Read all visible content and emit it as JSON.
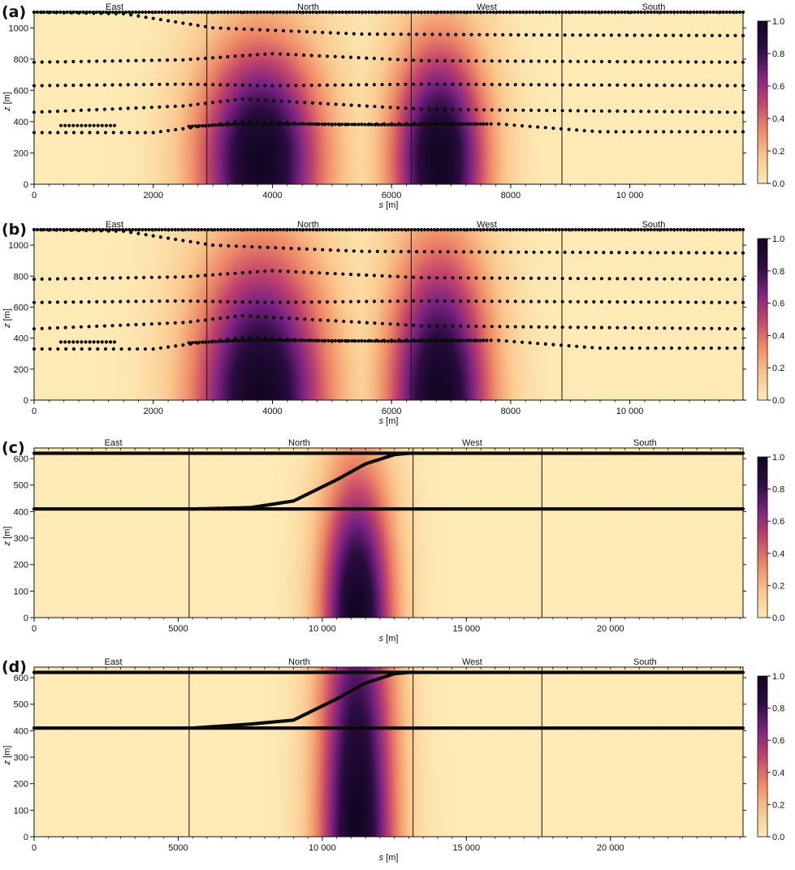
{
  "colors": {
    "frame": "#111111",
    "marker": "#0b0b0b",
    "colormap": [
      "#fdeab4",
      "#f9c58b",
      "#ee8866",
      "#c2446a",
      "#7b2283",
      "#2b0c40",
      "#120622"
    ]
  },
  "chart_data": [
    {
      "type": "heatmap",
      "panel_label": "(a)",
      "xlabel": "s [m]",
      "ylabel": "z [m]",
      "xlim": [
        0,
        11900
      ],
      "ylim": [
        0,
        1100
      ],
      "xticks": [
        0,
        2000,
        4000,
        6000,
        8000,
        10000
      ],
      "xtick_labels": [
        "0",
        "2000",
        "4000",
        "6000",
        "8000",
        "10 000"
      ],
      "yticks": [
        0,
        200,
        400,
        600,
        800,
        1000
      ],
      "ytick_labels": [
        "0",
        "200",
        "400",
        "600",
        "800",
        "1000"
      ],
      "section_labels": [
        {
          "label": "East",
          "s": 1350
        },
        {
          "label": "North",
          "s": 4600
        },
        {
          "label": "West",
          "s": 7600
        },
        {
          "label": "South",
          "s": 10400
        }
      ],
      "section_boundaries": [
        2900,
        6330,
        8860
      ],
      "field_peaks": [
        {
          "s": 3800,
          "z": 150,
          "sigma_s": 750,
          "sigma_z": 550,
          "amplitude": 1.0
        },
        {
          "s": 6800,
          "z": 150,
          "sigma_s": 580,
          "sigma_z": 550,
          "amplitude": 1.0
        }
      ],
      "colorbar": {
        "range": [
          0,
          1
        ],
        "ticks": [
          0.0,
          0.2,
          0.4,
          0.6,
          0.8,
          1.0
        ],
        "tick_labels": [
          "0.0",
          "0.2",
          "0.4",
          "0.6",
          "0.8",
          "1.0"
        ]
      },
      "tracks": [
        {
          "s": [
            0,
            11900
          ],
          "z": [
            1100,
            1100
          ],
          "spacing": 55
        },
        {
          "s": [
            0,
            1500,
            3000,
            5500,
            8000,
            11900
          ],
          "z": [
            1100,
            1090,
            1000,
            960,
            955,
            950
          ],
          "spacing": 130
        },
        {
          "s": [
            0,
            2500,
            4000,
            6500,
            9000,
            11900
          ],
          "z": [
            780,
            795,
            835,
            790,
            785,
            780
          ],
          "spacing": 130
        },
        {
          "s": [
            0,
            2500,
            4000,
            6500,
            9000,
            11900
          ],
          "z": [
            630,
            640,
            630,
            640,
            635,
            630
          ],
          "spacing": 130
        },
        {
          "s": [
            0,
            2500,
            3500,
            6500,
            9000,
            11900
          ],
          "z": [
            460,
            500,
            545,
            480,
            470,
            460
          ],
          "spacing": 130
        },
        {
          "s": [
            0,
            2000,
            3500,
            5000,
            6500,
            7800
          ],
          "z": [
            330,
            330,
            405,
            380,
            390,
            385
          ],
          "spacing": 130
        },
        {
          "s": [
            7800,
            9500,
            11900
          ],
          "z": [
            385,
            335,
            335
          ],
          "spacing": 130
        },
        {
          "s": [
            2600,
            3500,
            4500,
            6000,
            7600
          ],
          "z": [
            370,
            385,
            385,
            380,
            385
          ],
          "spacing": 55
        },
        {
          "s": [
            450,
            1350
          ],
          "z": [
            375,
            375
          ],
          "spacing": 70
        }
      ]
    },
    {
      "type": "heatmap",
      "panel_label": "(b)",
      "xlabel": "s [m]",
      "ylabel": "z [m]",
      "xlim": [
        0,
        11900
      ],
      "ylim": [
        0,
        1100
      ],
      "xticks": [
        0,
        2000,
        4000,
        6000,
        8000,
        10000
      ],
      "xtick_labels": [
        "0",
        "2000",
        "4000",
        "6000",
        "8000",
        "10 000"
      ],
      "yticks": [
        0,
        200,
        400,
        600,
        800,
        1000
      ],
      "ytick_labels": [
        "0",
        "200",
        "400",
        "600",
        "800",
        "1000"
      ],
      "section_labels": [
        {
          "label": "East",
          "s": 1350
        },
        {
          "label": "North",
          "s": 4600
        },
        {
          "label": "West",
          "s": 7600
        },
        {
          "label": "South",
          "s": 10400
        }
      ],
      "section_boundaries": [
        2900,
        6330,
        8860
      ],
      "field_peaks": [
        {
          "s": 3800,
          "z": 0,
          "sigma_s": 800,
          "sigma_z": 700,
          "amplitude": 1.0
        },
        {
          "s": 6800,
          "z": 0,
          "sigma_s": 620,
          "sigma_z": 700,
          "amplitude": 1.0
        }
      ],
      "colorbar": {
        "range": [
          0,
          1
        ],
        "ticks": [
          0.0,
          0.2,
          0.4,
          0.6,
          0.8,
          1.0
        ],
        "tick_labels": [
          "0.0",
          "0.2",
          "0.4",
          "0.6",
          "0.8",
          "1.0"
        ]
      },
      "tracks": [
        {
          "s": [
            0,
            11900
          ],
          "z": [
            1100,
            1100
          ],
          "spacing": 55
        },
        {
          "s": [
            0,
            1500,
            3000,
            5500,
            8000,
            11900
          ],
          "z": [
            1100,
            1090,
            1000,
            960,
            955,
            950
          ],
          "spacing": 130
        },
        {
          "s": [
            0,
            2500,
            4000,
            6500,
            9000,
            11900
          ],
          "z": [
            780,
            795,
            835,
            790,
            785,
            780
          ],
          "spacing": 130
        },
        {
          "s": [
            0,
            2500,
            4000,
            6500,
            9000,
            11900
          ],
          "z": [
            630,
            640,
            630,
            640,
            635,
            630
          ],
          "spacing": 130
        },
        {
          "s": [
            0,
            2500,
            3500,
            6500,
            9000,
            11900
          ],
          "z": [
            460,
            500,
            545,
            480,
            470,
            460
          ],
          "spacing": 130
        },
        {
          "s": [
            0,
            2000,
            3500,
            5000,
            6500,
            7800
          ],
          "z": [
            330,
            330,
            405,
            380,
            390,
            385
          ],
          "spacing": 130
        },
        {
          "s": [
            7800,
            9500,
            11900
          ],
          "z": [
            385,
            335,
            335
          ],
          "spacing": 130
        },
        {
          "s": [
            2600,
            3500,
            4500,
            6000,
            7600
          ],
          "z": [
            370,
            385,
            385,
            380,
            385
          ],
          "spacing": 55
        },
        {
          "s": [
            450,
            1350
          ],
          "z": [
            375,
            375
          ],
          "spacing": 70
        }
      ]
    },
    {
      "type": "heatmap",
      "panel_label": "(c)",
      "xlabel": "s [m]",
      "ylabel": "z [m]",
      "xlim": [
        0,
        24600
      ],
      "ylim": [
        0,
        640
      ],
      "xticks": [
        0,
        5000,
        10000,
        15000,
        20000
      ],
      "xtick_labels": [
        "0",
        "5000",
        "10 000",
        "15 000",
        "20 000"
      ],
      "yticks": [
        0,
        100,
        200,
        300,
        400,
        500,
        600
      ],
      "ytick_labels": [
        "0",
        "100",
        "200",
        "300",
        "400",
        "500",
        "600"
      ],
      "section_labels": [
        {
          "label": "East",
          "s": 2750
        },
        {
          "label": "North",
          "s": 9200
        },
        {
          "label": "West",
          "s": 15200
        },
        {
          "label": "South",
          "s": 21200
        }
      ],
      "section_boundaries": [
        5380,
        13150,
        17620
      ],
      "field_peaks": [
        {
          "s": 11200,
          "z": 0,
          "sigma_s": 900,
          "sigma_z": 400,
          "amplitude": 1.0
        }
      ],
      "colorbar": {
        "range": [
          0,
          1
        ],
        "ticks": [
          0.0,
          0.2,
          0.4,
          0.6,
          0.8,
          1.0
        ],
        "tick_labels": [
          "0.0",
          "0.2",
          "0.4",
          "0.6",
          "0.8",
          "1.0"
        ]
      },
      "tracks": [
        {
          "s": [
            0,
            24600
          ],
          "z": [
            620,
            620
          ],
          "spacing": 40
        },
        {
          "s": [
            0,
            24600
          ],
          "z": [
            410,
            410
          ],
          "spacing": 40
        },
        {
          "s": [
            5500,
            7500,
            9000,
            10500,
            11500,
            12500,
            13000
          ],
          "z": [
            410,
            415,
            440,
            520,
            580,
            615,
            620
          ],
          "spacing": 40
        }
      ]
    },
    {
      "type": "heatmap",
      "panel_label": "(d)",
      "xlabel": "s [m]",
      "ylabel": "z [m]",
      "xlim": [
        0,
        24600
      ],
      "ylim": [
        0,
        640
      ],
      "xticks": [
        0,
        5000,
        10000,
        15000,
        20000
      ],
      "xtick_labels": [
        "0",
        "5000",
        "10 000",
        "15 000",
        "20 000"
      ],
      "yticks": [
        0,
        100,
        200,
        300,
        400,
        500,
        600
      ],
      "ytick_labels": [
        "0",
        "100",
        "200",
        "300",
        "400",
        "500",
        "600"
      ],
      "section_labels": [
        {
          "label": "East",
          "s": 2750
        },
        {
          "label": "North",
          "s": 9200
        },
        {
          "label": "West",
          "s": 15200
        },
        {
          "label": "South",
          "s": 21200
        }
      ],
      "section_boundaries": [
        5380,
        13150,
        17620
      ],
      "field_peaks": [
        {
          "s": 11200,
          "z": 0,
          "sigma_s": 950,
          "sigma_z": 800,
          "amplitude": 1.0
        }
      ],
      "colorbar": {
        "range": [
          0,
          1
        ],
        "ticks": [
          0.0,
          0.2,
          0.4,
          0.6,
          0.8,
          1.0
        ],
        "tick_labels": [
          "0.0",
          "0.2",
          "0.4",
          "0.6",
          "0.8",
          "1.0"
        ]
      },
      "tracks": [
        {
          "s": [
            0,
            24600
          ],
          "z": [
            620,
            620
          ],
          "spacing": 40
        },
        {
          "s": [
            0,
            24600
          ],
          "z": [
            410,
            410
          ],
          "spacing": 40
        },
        {
          "s": [
            5500,
            7500,
            9000,
            10500,
            11500,
            12500,
            13000
          ],
          "z": [
            410,
            425,
            440,
            520,
            580,
            615,
            620
          ],
          "spacing": 40
        }
      ]
    }
  ]
}
